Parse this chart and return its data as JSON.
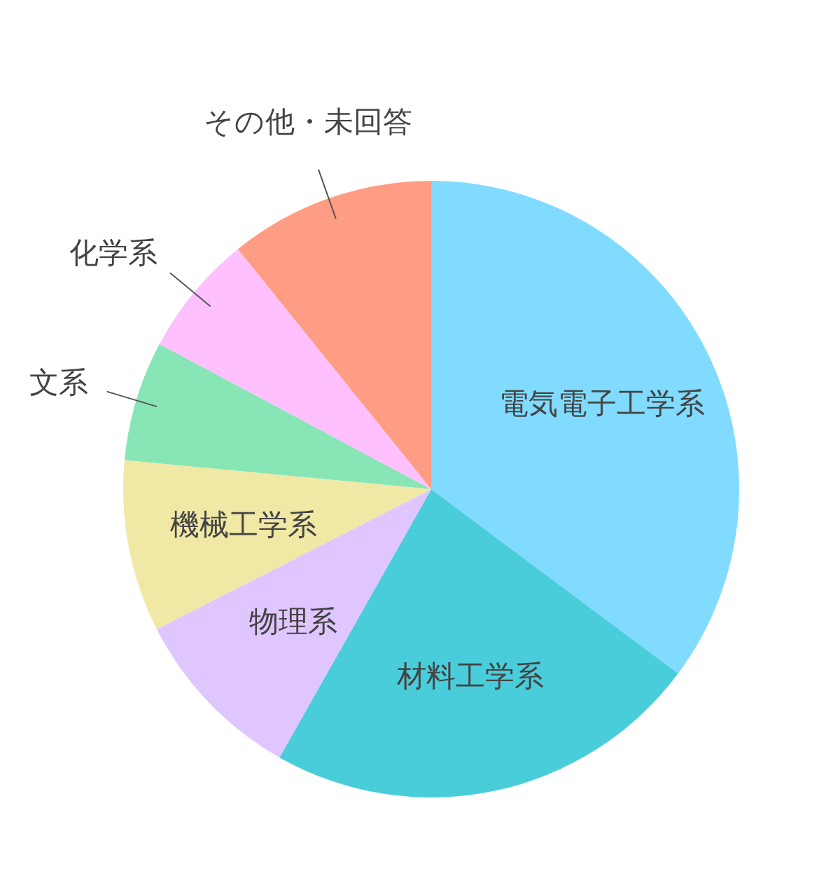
{
  "chart_data": {
    "type": "pie",
    "categories": [
      "電気電子工学系",
      "材料工学系",
      "物理系",
      "機械工学系",
      "文系",
      "化学系",
      "その他・未回答"
    ],
    "values": [
      35.2,
      23.0,
      9.3,
      9.0,
      6.3,
      6.4,
      10.8
    ],
    "colors": [
      "#80dbff",
      "#4acddb",
      "#e0c6ff",
      "#f0e9a6",
      "#88e5b6",
      "#ffc0ff",
      "#ff9c84"
    ],
    "legend": false
  }
}
